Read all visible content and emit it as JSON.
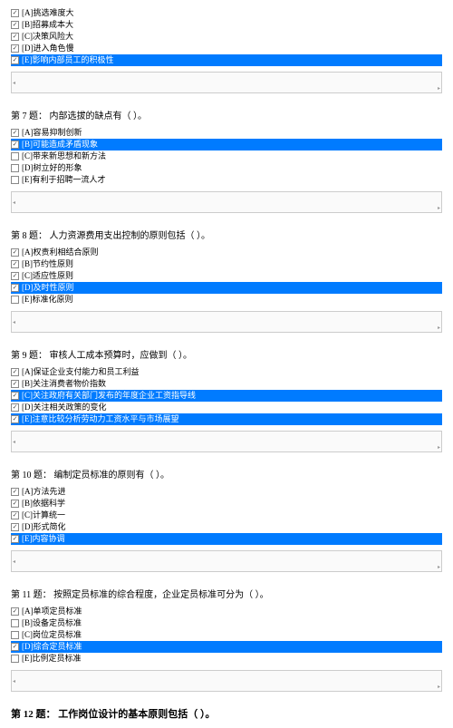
{
  "colors": {
    "highlight_bg": "#007bff",
    "highlight_fg": "#ffffff",
    "border": "#cccccc",
    "box_bg": "#fafafa"
  },
  "top": {
    "opts": [
      {
        "label": "[A]挑选难度大",
        "checked": true,
        "hl": false
      },
      {
        "label": "[B]招募成本大",
        "checked": true,
        "hl": false
      },
      {
        "label": "[C]决策风险大",
        "checked": true,
        "hl": false
      },
      {
        "label": "[D]进入角色慢",
        "checked": true,
        "hl": false
      },
      {
        "label": "[E]影响内部员工的积极性",
        "checked": true,
        "hl": true
      }
    ]
  },
  "q7": {
    "title": "第 7 题：  内部选拔的缺点有（  ）。",
    "opts": [
      {
        "label": "[A]容易抑制创新",
        "checked": true,
        "hl": false
      },
      {
        "label": "[B]可能造成矛盾现象",
        "checked": true,
        "hl": true
      },
      {
        "label": "[C]带来新思想和新方法",
        "checked": false,
        "hl": false
      },
      {
        "label": "[D]树立好的形象",
        "checked": false,
        "hl": false
      },
      {
        "label": "[E]有利于招聘一流人才",
        "checked": false,
        "hl": false
      }
    ]
  },
  "q8": {
    "title": "第 8 题：  人力资源费用支出控制的原则包括（  ）。",
    "opts": [
      {
        "label": "[A]权责利相结合原则",
        "checked": true,
        "hl": false
      },
      {
        "label": "[B]节约性原则",
        "checked": true,
        "hl": false
      },
      {
        "label": "[C]适应性原则",
        "checked": true,
        "hl": false
      },
      {
        "label": "[D]及时性原则",
        "checked": true,
        "hl": true
      },
      {
        "label": "[E]标准化原则",
        "checked": false,
        "hl": false
      }
    ]
  },
  "q9": {
    "title": "第 9 题：  审核人工成本预算时，应做到（  ）。",
    "opts": [
      {
        "label": "[A]保证企业支付能力和员工利益",
        "checked": true,
        "hl": false
      },
      {
        "label": "[B]关注消费者物价指数",
        "checked": true,
        "hl": false
      },
      {
        "label": "[C]关注政府有关部门发布的年度企业工资指导线",
        "checked": true,
        "hl": true
      },
      {
        "label": "[D]关注相关政策的变化",
        "checked": true,
        "hl": false
      },
      {
        "label": "[E]注意比较分析劳动力工资水平与市场展望",
        "checked": true,
        "hl": true
      }
    ]
  },
  "q10": {
    "title": "第 10 题：  编制定员标准的原则有（  ）。",
    "opts": [
      {
        "label": "[A]方法先进",
        "checked": true,
        "hl": false
      },
      {
        "label": "[B]依据科学",
        "checked": true,
        "hl": false
      },
      {
        "label": "[C]计算统一",
        "checked": true,
        "hl": false
      },
      {
        "label": "[D]形式简化",
        "checked": true,
        "hl": false
      },
      {
        "label": "[E]内容协调",
        "checked": true,
        "hl": true
      }
    ]
  },
  "q11": {
    "title": "第 11 题：  按照定员标准的综合程度，企业定员标准可分为（  ）。",
    "opts": [
      {
        "label": "[A]单项定员标准",
        "checked": true,
        "hl": false
      },
      {
        "label": "[B]设备定员标准",
        "checked": false,
        "hl": false
      },
      {
        "label": "[C]岗位定员标准",
        "checked": false,
        "hl": false
      },
      {
        "label": "[D]综合定员标准",
        "checked": true,
        "hl": true
      },
      {
        "label": "[E]比例定员标准",
        "checked": false,
        "hl": false
      }
    ]
  },
  "q12": {
    "title": "第 12 题：  工作岗位设计的基本原则包括（  ）。"
  }
}
